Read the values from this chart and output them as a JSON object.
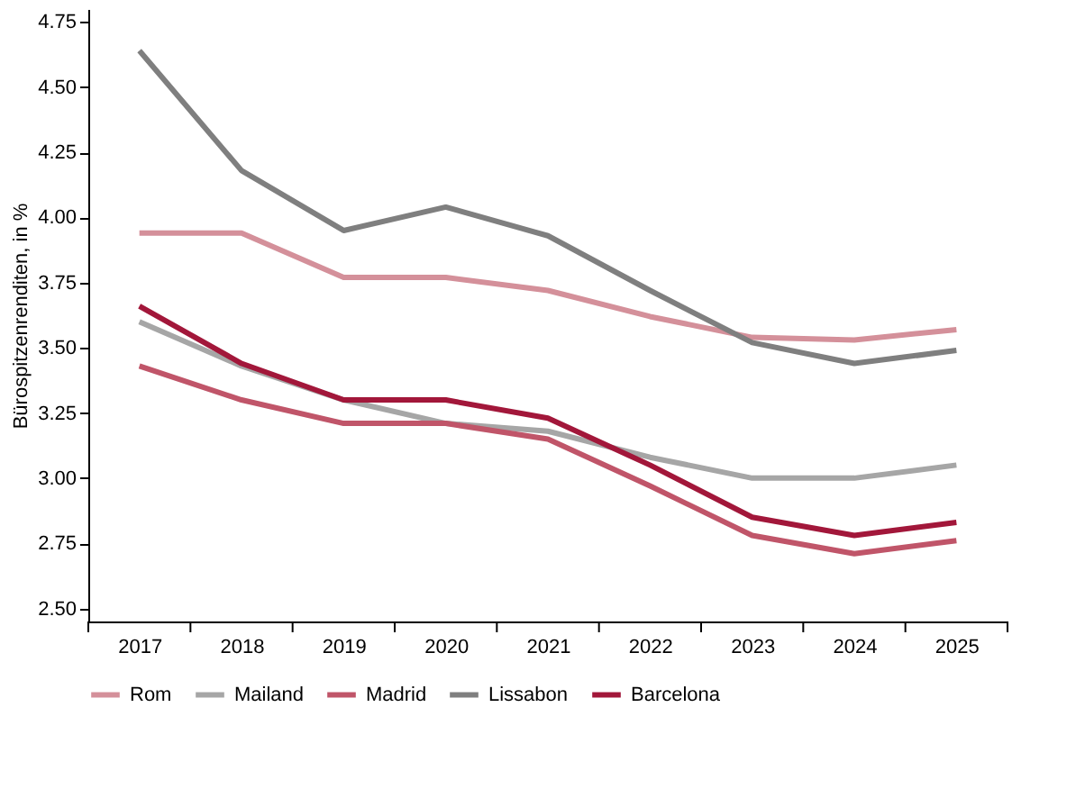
{
  "chart_data": {
    "type": "line",
    "ylabel": "Bürospitzenrenditen, in %",
    "categories": [
      "2017",
      "2018",
      "2019",
      "2020",
      "2021",
      "2022",
      "2023",
      "2024",
      "2025"
    ],
    "series": [
      {
        "name": "Rom",
        "color": "#d4909a",
        "values": [
          3.94,
          3.94,
          3.77,
          3.77,
          3.72,
          3.62,
          3.54,
          3.53,
          3.57
        ]
      },
      {
        "name": "Mailand",
        "color": "#a6a6a6",
        "values": [
          3.6,
          3.43,
          3.3,
          3.21,
          3.18,
          3.08,
          3.0,
          3.0,
          3.05
        ]
      },
      {
        "name": "Madrid",
        "color": "#c05569",
        "values": [
          3.43,
          3.3,
          3.21,
          3.21,
          3.15,
          2.97,
          2.78,
          2.71,
          2.76
        ]
      },
      {
        "name": "Lissabon",
        "color": "#7f7f7f",
        "values": [
          4.64,
          4.18,
          3.95,
          4.04,
          3.93,
          3.72,
          3.52,
          3.44,
          3.49
        ]
      },
      {
        "name": "Barcelona",
        "color": "#a2173a",
        "values": [
          3.66,
          3.44,
          3.3,
          3.3,
          3.23,
          3.05,
          2.85,
          2.78,
          2.83
        ]
      }
    ],
    "ylim": [
      2.45,
      4.8
    ],
    "yticks": [
      {
        "value": 2.5,
        "label": "2.50"
      },
      {
        "value": 2.75,
        "label": "2.75"
      },
      {
        "value": 3.0,
        "label": "3.00"
      },
      {
        "value": 3.25,
        "label": "3.25"
      },
      {
        "value": 3.5,
        "label": "3.50"
      },
      {
        "value": 3.75,
        "label": "3.75"
      },
      {
        "value": 4.0,
        "label": "4.00"
      },
      {
        "value": 4.25,
        "label": "4.25"
      },
      {
        "value": 4.5,
        "label": "4.50"
      },
      {
        "value": 4.75,
        "label": "4.75"
      }
    ],
    "grid": false,
    "legend": "bottom left",
    "marker": "none",
    "line_style": "solid"
  }
}
